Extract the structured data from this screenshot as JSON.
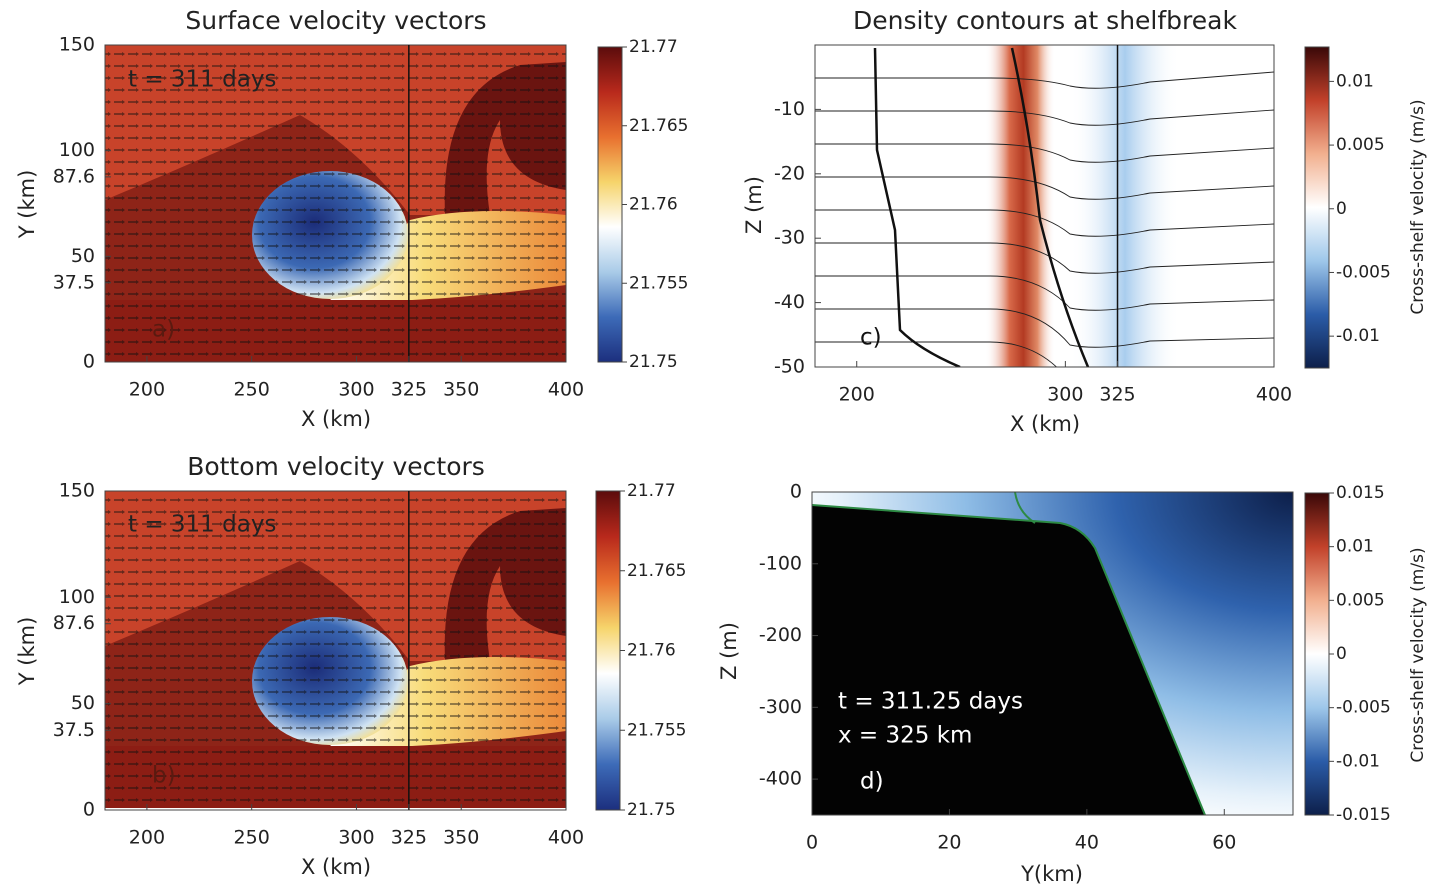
{
  "chart_data": [
    {
      "type": "field",
      "title": "Surface velocity vectors",
      "xlabel": "X (km)",
      "ylabel": "Y (km)",
      "xlim": [
        180,
        400
      ],
      "xticks": [
        200,
        250,
        300,
        325,
        350,
        400
      ],
      "ylim": [
        0,
        150
      ],
      "yticks": [
        0,
        37.5,
        50,
        87.6,
        100,
        150
      ],
      "clim": [
        21.75,
        21.77
      ],
      "cticks": [
        21.75,
        21.755,
        21.76,
        21.765,
        21.77
      ],
      "colormap": [
        "#1c2f7e",
        "#3d6bb8",
        "#a9cbe8",
        "#ffffff",
        "#f6d46b",
        "#e8702f",
        "#b8291c",
        "#5c0c0c"
      ],
      "vline": 325,
      "annotations": [
        "t = 311 days",
        "a)"
      ]
    },
    {
      "type": "field",
      "title": "Bottom velocity vectors",
      "xlabel": "X (km)",
      "ylabel": "Y (km)",
      "xlim": [
        180,
        400
      ],
      "xticks": [
        200,
        250,
        300,
        325,
        350,
        400
      ],
      "ylim": [
        0,
        150
      ],
      "yticks": [
        0,
        37.5,
        50,
        87.6,
        100,
        150
      ],
      "clim": [
        21.75,
        21.77
      ],
      "cticks": [
        21.75,
        21.755,
        21.76,
        21.765,
        21.77
      ],
      "colormap": [
        "#1c2f7e",
        "#3d6bb8",
        "#a9cbe8",
        "#ffffff",
        "#f6d46b",
        "#e8702f",
        "#b8291c",
        "#5c0c0c"
      ],
      "vline": 325,
      "annotations": [
        "t = 311 days",
        "b)"
      ]
    },
    {
      "type": "field",
      "title": "Density contours at shelfbreak",
      "xlabel": "X (km)",
      "ylabel": "Z (m)",
      "xlim": [
        180,
        400
      ],
      "xticks": [
        200,
        300,
        325,
        400
      ],
      "ylim": [
        -50,
        0
      ],
      "yticks": [
        -50,
        -40,
        -30,
        -20,
        -10
      ],
      "clim": [
        -0.0125,
        0.0127
      ],
      "cticks": [
        -0.01,
        -0.005,
        0,
        0.005,
        0.01
      ],
      "clabel": "Cross-shelf velocity (m/s)",
      "colormap": [
        "#0d1f4a",
        "#2b5ca8",
        "#9ec7ea",
        "#ffffff",
        "#f2b08f",
        "#c2412a",
        "#3a0808"
      ],
      "vline": 325,
      "annotations": [
        "c)"
      ]
    },
    {
      "type": "field",
      "xlabel": "Y(km)",
      "ylabel": "Z (m)",
      "xlim": [
        0,
        70
      ],
      "xticks": [
        0,
        20,
        40,
        60
      ],
      "ylim": [
        -450,
        0
      ],
      "yticks": [
        -400,
        -300,
        -200,
        -100,
        0
      ],
      "clim": [
        -0.015,
        0.015
      ],
      "cticks": [
        -0.015,
        -0.01,
        -0.005,
        0,
        0.005,
        0.01,
        0.015
      ],
      "clabel": "Cross-shelf velocity (m/s)",
      "colormap": [
        "#0d1f4a",
        "#2b5ca8",
        "#9ec7ea",
        "#ffffff",
        "#f2b08f",
        "#c2412a",
        "#3a0808"
      ],
      "annotations": [
        "t = 311.25 days",
        "x = 325 km",
        "d)"
      ]
    }
  ]
}
